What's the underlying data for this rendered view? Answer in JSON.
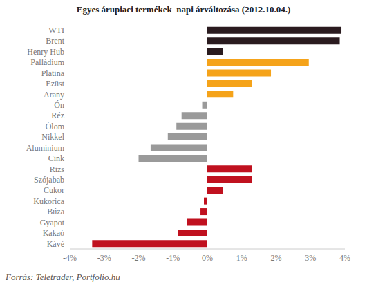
{
  "chart_data": {
    "type": "bar",
    "title": "Egyes árupiaci termékek  napi árváltozása (2012.10.04.)",
    "source": "Forrás: Teletrader, Portfolio.hu",
    "orientation": "horizontal",
    "categories": [
      "WTI",
      "Brent",
      "Henry Hub",
      "Palládium",
      "Platina",
      "Ezüst",
      "Arany",
      "Ón",
      "Réz",
      "Ólom",
      "Nikkel",
      "Alumínium",
      "Cink",
      "Rizs",
      "Szójabab",
      "Cukor",
      "Kukorica",
      "Búza",
      "Gyapot",
      "Kakaó",
      "Kávé"
    ],
    "values": [
      3.9,
      3.85,
      0.45,
      2.95,
      1.85,
      1.3,
      0.75,
      -0.15,
      -0.75,
      -0.9,
      -1.15,
      -1.65,
      -2.0,
      1.3,
      1.3,
      0.45,
      -0.1,
      -0.2,
      -0.6,
      -0.85,
      -3.35
    ],
    "colors": [
      "#2a1b1f",
      "#2a1b1f",
      "#2a1b1f",
      "#f5a31a",
      "#f5a31a",
      "#f5a31a",
      "#f5a31a",
      "#9a9a9a",
      "#9a9a9a",
      "#9a9a9a",
      "#9a9a9a",
      "#9a9a9a",
      "#9a9a9a",
      "#c0111f",
      "#c0111f",
      "#c0111f",
      "#c0111f",
      "#c0111f",
      "#c0111f",
      "#c0111f",
      "#c0111f"
    ],
    "xlim": [
      -4,
      4
    ],
    "xticks": [
      {
        "value": -4,
        "label": "-4%"
      },
      {
        "value": -3,
        "label": "-3%"
      },
      {
        "value": -2,
        "label": "-2%"
      },
      {
        "value": -1,
        "label": "-1%"
      },
      {
        "value": 0,
        "label": "0%"
      },
      {
        "value": 1,
        "label": "1%"
      },
      {
        "value": 2,
        "label": "2%"
      },
      {
        "value": 3,
        "label": "3%"
      },
      {
        "value": 4,
        "label": "4%"
      }
    ],
    "grid": false
  }
}
